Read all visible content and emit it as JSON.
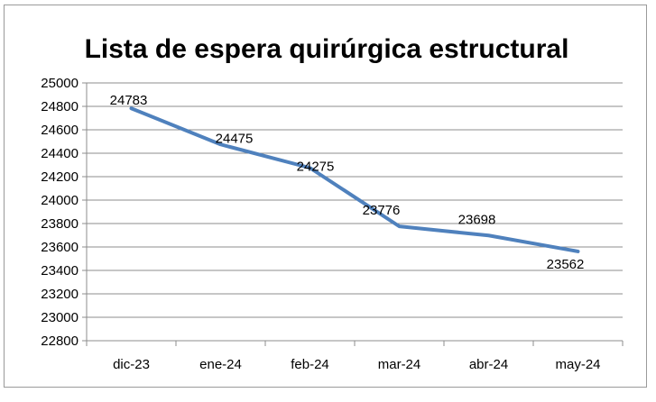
{
  "chart_data": {
    "type": "line",
    "title": "Lista de espera quirúrgica estructural",
    "categories": [
      "dic-23",
      "ene-24",
      "feb-24",
      "mar-24",
      "abr-24",
      "may-24"
    ],
    "series": [
      {
        "values": [
          24783,
          24475,
          24275,
          23776,
          23698,
          23562
        ]
      }
    ],
    "ylim": [
      22800,
      25000
    ],
    "ytick_step": 200,
    "grid": true,
    "legend": "none",
    "line_color": "#4f81bd"
  }
}
